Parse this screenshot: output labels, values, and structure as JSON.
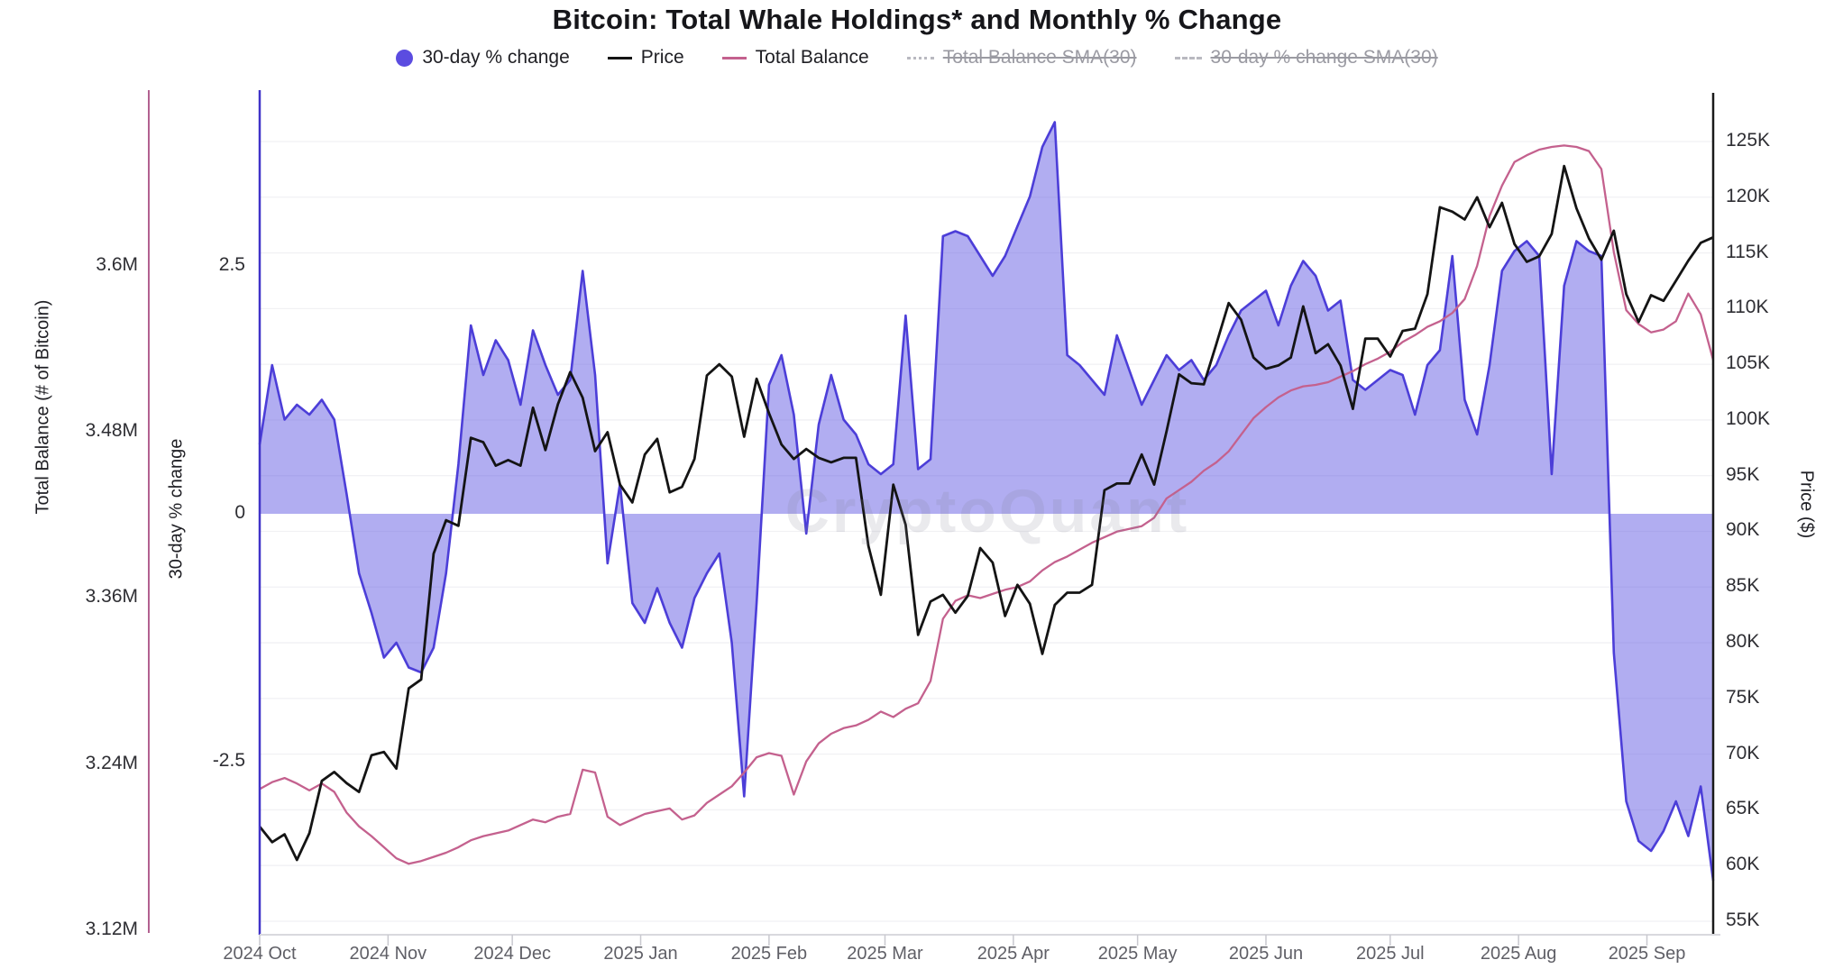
{
  "title": "Bitcoin: Total Whale Holdings* and Monthly % Change",
  "watermark": "CryptoQuant",
  "colors": {
    "pct_fill": "rgba(106,97,228,0.52)",
    "pct_stroke": "#4c3ed8",
    "pct_legend_dot": "#5b4ce0",
    "price_line": "#141414",
    "balance_line": "#c4618e",
    "balance_axis_line": "#b26190",
    "pct_axis_line": "#4033c8",
    "price_axis_line": "#1a1a1a",
    "gridline": "#f1f1f4",
    "bottom_axis_line": "#d9d9de",
    "month_tick": "#c9c9cf",
    "disabled_legend": "#9a9aa2"
  },
  "legend": [
    {
      "label": "30-day % change",
      "marker": "dot",
      "color": "#5b4ce0",
      "disabled": false
    },
    {
      "label": "Price",
      "marker": "line",
      "color": "#141414",
      "disabled": false
    },
    {
      "label": "Total Balance",
      "marker": "line",
      "color": "#c4618e",
      "disabled": false
    },
    {
      "label": "Total Balance SMA(30)",
      "marker": "dotted",
      "color": "#b9b9c0",
      "disabled": true
    },
    {
      "label": "30-day % change SMA(30)",
      "marker": "dashed",
      "color": "#b9b9c0",
      "disabled": true
    }
  ],
  "axes": {
    "balance": {
      "label": "Total Balance (# of Bitcoin)",
      "ticks": [
        {
          "label": "3.6M",
          "v": 3.6
        },
        {
          "label": "3.48M",
          "v": 3.48
        },
        {
          "label": "3.36M",
          "v": 3.36
        },
        {
          "label": "3.24M",
          "v": 3.24
        },
        {
          "label": "3.12M",
          "v": 3.12
        }
      ]
    },
    "pct": {
      "label": "30-day % change",
      "ticks": [
        {
          "label": "2.5",
          "v": 2.5
        },
        {
          "label": "0",
          "v": 0
        },
        {
          "label": "-2.5",
          "v": -2.5
        }
      ]
    },
    "price": {
      "label": "Price ($)",
      "ticks": [
        {
          "label": "125K",
          "v": 125
        },
        {
          "label": "120K",
          "v": 120
        },
        {
          "label": "115K",
          "v": 115
        },
        {
          "label": "110K",
          "v": 110
        },
        {
          "label": "105K",
          "v": 105
        },
        {
          "label": "100K",
          "v": 100
        },
        {
          "label": "95K",
          "v": 95
        },
        {
          "label": "90K",
          "v": 90
        },
        {
          "label": "85K",
          "v": 85
        },
        {
          "label": "80K",
          "v": 80
        },
        {
          "label": "75K",
          "v": 75
        },
        {
          "label": "70K",
          "v": 70
        },
        {
          "label": "65K",
          "v": 65
        },
        {
          "label": "60K",
          "v": 60
        },
        {
          "label": "55K",
          "v": 55
        }
      ]
    },
    "x": {
      "months": [
        {
          "label": "2024 Oct",
          "day": 0
        },
        {
          "label": "2024 Nov",
          "day": 31
        },
        {
          "label": "2024 Dec",
          "day": 61
        },
        {
          "label": "2025 Jan",
          "day": 92
        },
        {
          "label": "2025 Feb",
          "day": 123
        },
        {
          "label": "2025 Mar",
          "day": 151
        },
        {
          "label": "2025 Apr",
          "day": 182
        },
        {
          "label": "2025 May",
          "day": 212
        },
        {
          "label": "2025 Jun",
          "day": 243
        },
        {
          "label": "2025 Jul",
          "day": 273
        },
        {
          "label": "2025 Aug",
          "day": 304
        },
        {
          "label": "2025 Sep",
          "day": 335
        }
      ]
    }
  },
  "chart_data": {
    "type": "mixed",
    "start_date": "2024-10-01",
    "sample_interval_days": 3,
    "total_span_days": 351,
    "grid": true,
    "legend_position": "top-center",
    "axis_ranges": {
      "pct": [
        -4.2,
        4.2
      ],
      "price_k_usd": [
        55,
        125
      ],
      "balance_m_btc": [
        3.12,
        3.72
      ]
    },
    "series": [
      {
        "name": "30-day % change",
        "type": "area",
        "axis": "pct",
        "unit": "%",
        "values": [
          0.7,
          1.5,
          0.95,
          1.1,
          1.0,
          1.15,
          0.95,
          0.2,
          -0.6,
          -1.0,
          -1.45,
          -1.3,
          -1.55,
          -1.6,
          -1.35,
          -0.6,
          0.5,
          1.9,
          1.4,
          1.75,
          1.55,
          1.1,
          1.85,
          1.5,
          1.2,
          1.35,
          2.45,
          1.4,
          -0.5,
          0.3,
          -0.9,
          -1.1,
          -0.75,
          -1.1,
          -1.35,
          -0.85,
          -0.6,
          -0.4,
          -1.3,
          -2.85,
          -0.9,
          1.3,
          1.6,
          1.0,
          -0.2,
          0.9,
          1.4,
          0.95,
          0.8,
          0.5,
          0.4,
          0.5,
          2.0,
          0.45,
          0.55,
          2.8,
          2.85,
          2.8,
          2.6,
          2.4,
          2.6,
          2.9,
          3.2,
          3.7,
          3.95,
          1.6,
          1.5,
          1.35,
          1.2,
          1.8,
          1.45,
          1.1,
          1.35,
          1.6,
          1.45,
          1.55,
          1.35,
          1.5,
          1.8,
          2.05,
          2.15,
          2.25,
          1.9,
          2.3,
          2.55,
          2.4,
          2.05,
          2.15,
          1.35,
          1.25,
          1.35,
          1.45,
          1.4,
          1.0,
          1.5,
          1.65,
          2.6,
          1.15,
          0.8,
          1.5,
          2.45,
          2.65,
          2.75,
          2.6,
          0.4,
          2.3,
          2.75,
          2.65,
          2.6,
          -1.4,
          -2.9,
          -3.3,
          -3.4,
          -3.2,
          -2.9,
          -3.25,
          -2.75,
          -3.7
        ]
      },
      {
        "name": "Price",
        "type": "line",
        "axis": "price",
        "unit": "K USD",
        "values": [
          63.5,
          62.1,
          62.8,
          60.5,
          62.9,
          67.6,
          68.4,
          67.4,
          66.6,
          69.9,
          70.2,
          68.7,
          75.9,
          76.7,
          88.0,
          91.0,
          90.5,
          98.4,
          98.0,
          95.9,
          96.4,
          95.9,
          101.1,
          97.3,
          101.4,
          104.3,
          102.0,
          97.2,
          98.9,
          94.2,
          92.6,
          96.9,
          98.3,
          93.5,
          94.0,
          96.5,
          104.0,
          105.0,
          103.9,
          98.5,
          103.7,
          100.6,
          97.8,
          96.5,
          97.4,
          96.6,
          96.2,
          96.6,
          96.6,
          88.7,
          84.3,
          94.2,
          90.6,
          80.7,
          83.7,
          84.3,
          82.7,
          84.2,
          88.5,
          87.2,
          82.4,
          85.2,
          83.5,
          79.0,
          83.4,
          84.5,
          84.5,
          85.2,
          93.7,
          94.3,
          94.3,
          96.9,
          94.2,
          99.0,
          104.1,
          103.3,
          103.2,
          106.8,
          110.5,
          109.0,
          105.6,
          104.6,
          104.9,
          105.6,
          110.2,
          106.0,
          106.8,
          104.9,
          101.0,
          107.3,
          107.3,
          105.7,
          108.0,
          108.2,
          111.3,
          119.1,
          118.7,
          118.0,
          120.0,
          117.3,
          119.5,
          115.8,
          114.2,
          114.7,
          116.7,
          122.8,
          119.0,
          116.3,
          114.4,
          117.0,
          111.3,
          108.8,
          111.2,
          110.7,
          112.5,
          114.3,
          115.9,
          116.4
        ]
      },
      {
        "name": "Total Balance",
        "type": "line",
        "axis": "balance",
        "unit": "M BTC",
        "values": [
          3.222,
          3.227,
          3.23,
          3.226,
          3.221,
          3.226,
          3.22,
          3.205,
          3.195,
          3.188,
          3.18,
          3.172,
          3.168,
          3.17,
          3.173,
          3.176,
          3.18,
          3.185,
          3.188,
          3.19,
          3.192,
          3.196,
          3.2,
          3.198,
          3.202,
          3.204,
          3.236,
          3.234,
          3.202,
          3.196,
          3.2,
          3.204,
          3.206,
          3.208,
          3.2,
          3.203,
          3.212,
          3.218,
          3.224,
          3.234,
          3.245,
          3.248,
          3.246,
          3.218,
          3.242,
          3.255,
          3.262,
          3.266,
          3.268,
          3.272,
          3.278,
          3.274,
          3.28,
          3.284,
          3.3,
          3.345,
          3.358,
          3.362,
          3.36,
          3.363,
          3.366,
          3.368,
          3.372,
          3.38,
          3.386,
          3.39,
          3.395,
          3.4,
          3.404,
          3.408,
          3.41,
          3.412,
          3.418,
          3.432,
          3.438,
          3.444,
          3.452,
          3.458,
          3.466,
          3.478,
          3.49,
          3.498,
          3.505,
          3.51,
          3.513,
          3.514,
          3.516,
          3.52,
          3.524,
          3.529,
          3.533,
          3.538,
          3.545,
          3.55,
          3.556,
          3.56,
          3.566,
          3.576,
          3.6,
          3.636,
          3.658,
          3.675,
          3.68,
          3.684,
          3.686,
          3.687,
          3.686,
          3.683,
          3.67,
          3.61,
          3.568,
          3.558,
          3.552,
          3.554,
          3.56,
          3.58,
          3.565,
          3.532
        ]
      }
    ]
  }
}
